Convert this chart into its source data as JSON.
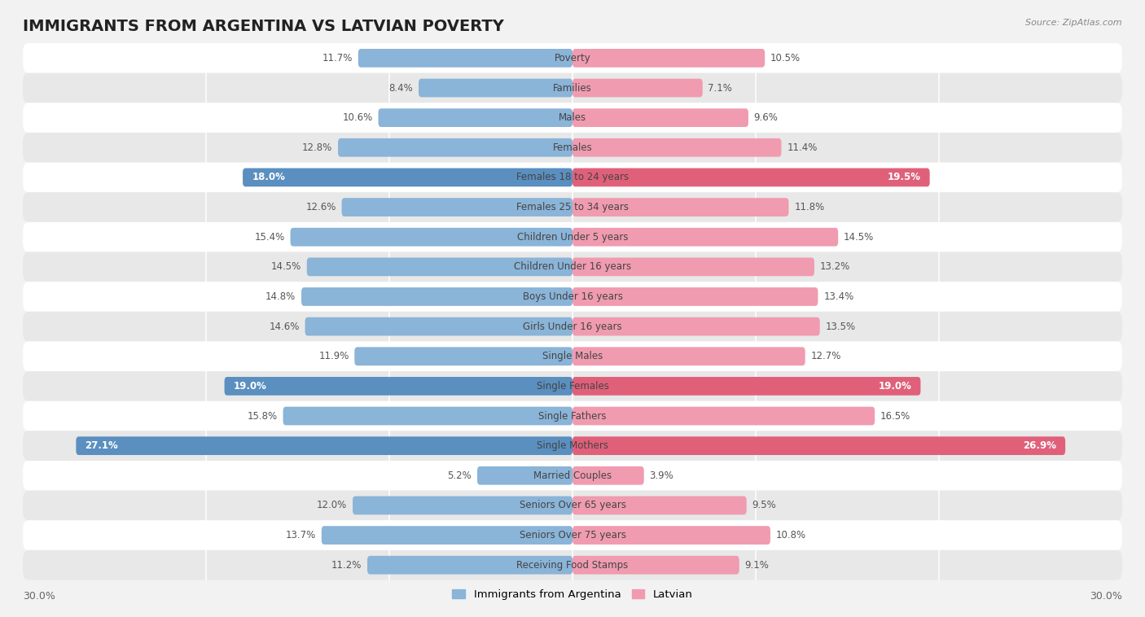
{
  "title": "IMMIGRANTS FROM ARGENTINA VS LATVIAN POVERTY",
  "source": "Source: ZipAtlas.com",
  "categories": [
    "Poverty",
    "Families",
    "Males",
    "Females",
    "Females 18 to 24 years",
    "Females 25 to 34 years",
    "Children Under 5 years",
    "Children Under 16 years",
    "Boys Under 16 years",
    "Girls Under 16 years",
    "Single Males",
    "Single Females",
    "Single Fathers",
    "Single Mothers",
    "Married Couples",
    "Seniors Over 65 years",
    "Seniors Over 75 years",
    "Receiving Food Stamps"
  ],
  "argentina_values": [
    11.7,
    8.4,
    10.6,
    12.8,
    18.0,
    12.6,
    15.4,
    14.5,
    14.8,
    14.6,
    11.9,
    19.0,
    15.8,
    27.1,
    5.2,
    12.0,
    13.7,
    11.2
  ],
  "latvian_values": [
    10.5,
    7.1,
    9.6,
    11.4,
    19.5,
    11.8,
    14.5,
    13.2,
    13.4,
    13.5,
    12.7,
    19.0,
    16.5,
    26.9,
    3.9,
    9.5,
    10.8,
    9.1
  ],
  "argentina_color": "#8ab4d8",
  "latvian_color": "#f09bb0",
  "argentina_highlight_color": "#5a8fc0",
  "latvian_highlight_color": "#e0607a",
  "background_color": "#f2f2f2",
  "row_color_odd": "#ffffff",
  "row_color_even": "#e8e8e8",
  "axis_limit": 30.0,
  "bar_height": 0.62,
  "legend_argentina": "Immigrants from Argentina",
  "legend_latvian": "Latvian",
  "title_fontsize": 14,
  "label_fontsize": 8.5,
  "value_fontsize": 8.5,
  "axis_tick_fontsize": 9,
  "highlight_indices_argentina": [
    4,
    11,
    13
  ],
  "highlight_indices_latvian": [
    4,
    11,
    13
  ]
}
